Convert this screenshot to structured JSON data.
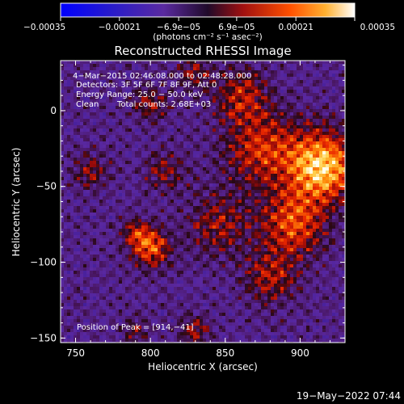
{
  "chart_data": {
    "type": "heatmap",
    "title": "Reconstructed RHESSI Image",
    "xlabel": "Heliocentric X (arcsec)",
    "ylabel": "Heliocentric Y (arcsec)",
    "xlim": [
      740,
      930
    ],
    "ylim": [
      -153,
      33
    ],
    "x_ticks": [
      750,
      800,
      850,
      900
    ],
    "y_ticks": [
      0,
      -50,
      -100,
      -150
    ],
    "x_tick_labels": [
      "750",
      "800",
      "850",
      "900"
    ],
    "y_tick_labels": [
      "0",
      "−50",
      "−100",
      "−150"
    ],
    "colorbar": {
      "range": [
        -0.00035,
        0.00035
      ],
      "ticks": [
        -0.00035,
        -0.00021,
        -6.9e-05,
        6.9e-05,
        0.00021,
        0.00035
      ],
      "tick_labels": [
        "−0.00035",
        "−0.00021",
        "−6.9e−05",
        "6.9e−05",
        "0.00021",
        "0.00035"
      ],
      "unit_label": "(photons cm⁻² s⁻¹ asec⁻²)"
    },
    "peak": {
      "x": 914,
      "y": -41
    },
    "blobs": [
      {
        "x": 915,
        "y": -37,
        "sigma": 16,
        "amp": 1.0
      },
      {
        "x": 895,
        "y": -75,
        "sigma": 15,
        "amp": 0.65
      },
      {
        "x": 875,
        "y": -25,
        "sigma": 18,
        "amp": 0.55
      },
      {
        "x": 860,
        "y": 10,
        "sigma": 12,
        "amp": 0.45
      },
      {
        "x": 880,
        "y": -110,
        "sigma": 12,
        "amp": 0.45
      },
      {
        "x": 845,
        "y": -75,
        "sigma": 14,
        "amp": 0.4
      },
      {
        "x": 800,
        "y": -90,
        "sigma": 9,
        "amp": 0.7
      },
      {
        "x": 790,
        "y": -80,
        "sigma": 6,
        "amp": 0.4
      },
      {
        "x": 800,
        "y": 5,
        "sigma": 8,
        "amp": 0.4
      },
      {
        "x": 760,
        "y": -40,
        "sigma": 8,
        "amp": 0.35
      },
      {
        "x": 810,
        "y": -40,
        "sigma": 9,
        "amp": 0.35
      },
      {
        "x": 830,
        "y": 25,
        "sigma": 8,
        "amp": 0.35
      },
      {
        "x": 830,
        "y": -145,
        "sigma": 7,
        "amp": 0.4
      },
      {
        "x": 790,
        "y": -145,
        "sigma": 6,
        "amp": 0.3
      }
    ]
  },
  "annotations": {
    "line1": "4−Mar−2015 02:46:08.000 to 02:48:28.000",
    "line2": "Detectors: 3F 5F 6F 7F 8F 9F, Att 0",
    "line3": "Energy Range: 25.0 − 50.0 keV",
    "line4_a": "Clean",
    "line4_b": "Total counts: 2.68E+03",
    "peak_label": "Position of Peak = [914,−41]"
  },
  "footer": {
    "timestamp": "19−May−2022 07:44"
  }
}
